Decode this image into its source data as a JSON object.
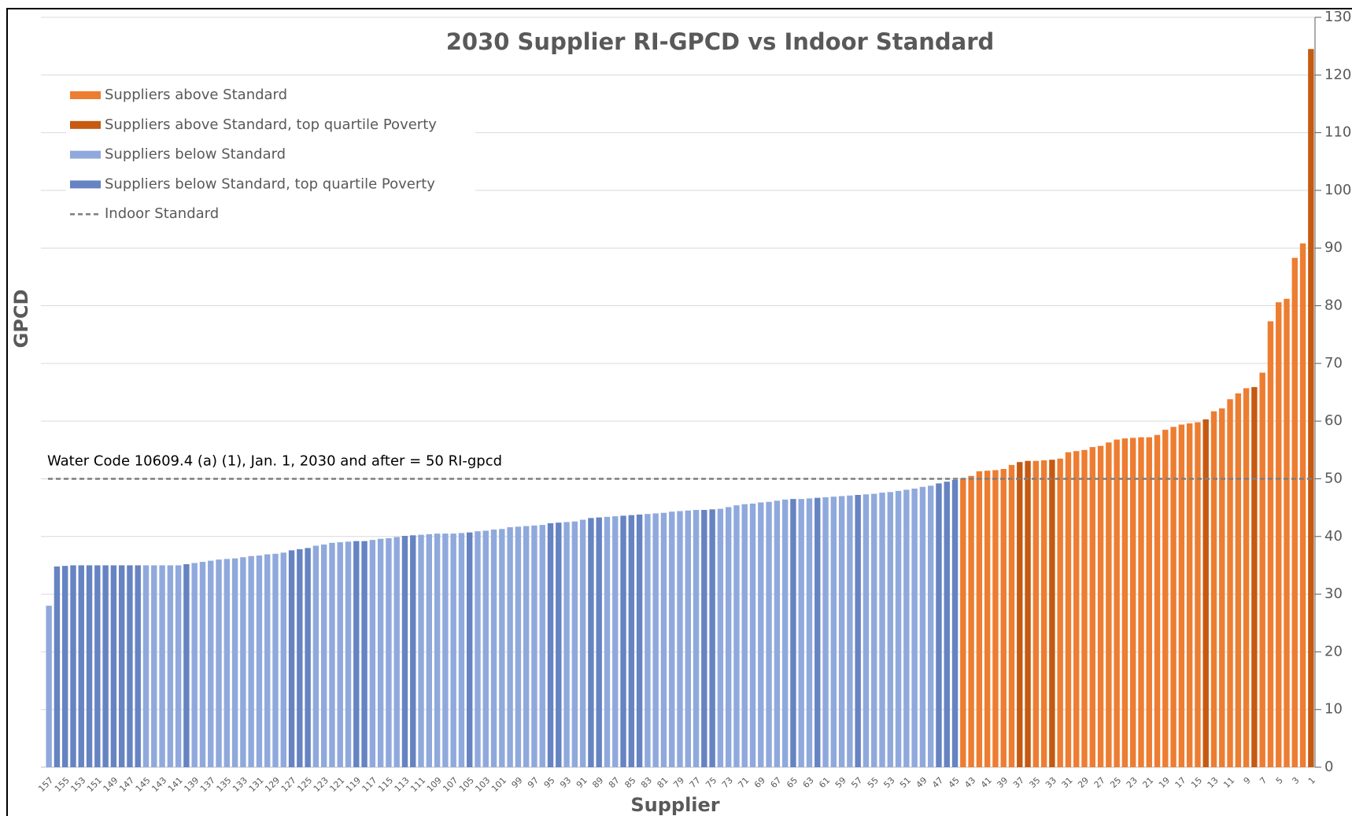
{
  "chart_data": {
    "type": "bar",
    "title": "2030 Supplier RI-GPCD vs Indoor Standard",
    "x_label": "Supplier",
    "y_label": "GPCD",
    "ylim": [
      0,
      130
    ],
    "yticks": [
      0,
      10,
      20,
      30,
      40,
      50,
      60,
      70,
      80,
      90,
      100,
      110,
      120,
      130
    ],
    "grid": true,
    "legend": "upper left",
    "categories": [
      "157",
      null,
      "155",
      null,
      "153",
      null,
      "151",
      null,
      "149",
      null,
      "147",
      null,
      "145",
      null,
      "143",
      null,
      "141",
      null,
      "139",
      null,
      "137",
      null,
      "135",
      null,
      "133",
      null,
      "131",
      null,
      "129",
      null,
      "127",
      null,
      "125",
      null,
      "123",
      null,
      "121",
      null,
      "119",
      null,
      "117",
      null,
      "115",
      null,
      "113",
      null,
      "111",
      null,
      "109",
      null,
      "107",
      null,
      "105",
      null,
      "103",
      null,
      "101",
      null,
      "99",
      null,
      "97",
      null,
      "95",
      null,
      "93",
      null,
      "91",
      null,
      "89",
      null,
      "87",
      null,
      "85",
      null,
      "83",
      null,
      "81",
      null,
      "79",
      null,
      "77",
      null,
      "75",
      null,
      "73",
      null,
      "71",
      null,
      "69",
      null,
      "67",
      null,
      "65",
      null,
      "63",
      null,
      "61",
      null,
      "59",
      null,
      "57",
      null,
      "55",
      null,
      "53",
      null,
      "51",
      null,
      "49",
      null,
      "47",
      null,
      "45",
      null,
      "43",
      null,
      "41",
      null,
      "39",
      null,
      "37",
      null,
      "35",
      null,
      "33",
      null,
      "31",
      null,
      "29",
      null,
      "27",
      null,
      "25",
      null,
      "23",
      null,
      "21",
      null,
      "19",
      null,
      "17",
      null,
      "15",
      null,
      "13",
      null,
      "11",
      null,
      "9",
      null,
      "7",
      null,
      "5",
      null,
      "3",
      null,
      "1"
    ],
    "series": [
      {
        "name": "Suppliers above Standard",
        "color": "#ed7d31",
        "values": [
          null,
          null,
          null,
          null,
          null,
          null,
          null,
          null,
          null,
          null,
          null,
          null,
          null,
          null,
          null,
          null,
          null,
          null,
          null,
          null,
          null,
          null,
          null,
          null,
          null,
          null,
          null,
          null,
          null,
          null,
          null,
          null,
          null,
          null,
          null,
          null,
          null,
          null,
          null,
          null,
          null,
          null,
          null,
          null,
          null,
          null,
          null,
          null,
          null,
          null,
          null,
          null,
          null,
          null,
          null,
          null,
          null,
          null,
          null,
          null,
          null,
          null,
          null,
          null,
          null,
          null,
          null,
          null,
          null,
          null,
          null,
          null,
          null,
          null,
          null,
          null,
          null,
          null,
          null,
          null,
          null,
          null,
          null,
          null,
          null,
          null,
          null,
          null,
          null,
          null,
          null,
          null,
          null,
          null,
          null,
          null,
          null,
          null,
          null,
          null,
          null,
          null,
          null,
          null,
          null,
          null,
          null,
          null,
          null,
          null,
          null,
          null,
          null,
          50.1,
          50.5,
          51.3,
          51.4,
          51.5,
          51.7,
          52.4,
          null,
          null,
          53.1,
          53.2,
          null,
          53.5,
          54.6,
          54.8,
          55,
          55.5,
          55.7,
          56.3,
          56.8,
          57,
          57.1,
          57.2,
          57.2,
          57.6,
          58.5,
          59,
          59.4,
          59.6,
          59.8,
          null,
          61.7,
          62.2,
          63.8,
          64.8,
          65.7,
          null,
          68.4,
          77.3,
          80.6,
          81.2,
          88.3,
          90.8,
          null
        ]
      },
      {
        "name": "Suppliers above Standard, top quartile Poverty",
        "color": "#c55a11",
        "values": [
          null,
          null,
          null,
          null,
          null,
          null,
          null,
          null,
          null,
          null,
          null,
          null,
          null,
          null,
          null,
          null,
          null,
          null,
          null,
          null,
          null,
          null,
          null,
          null,
          null,
          null,
          null,
          null,
          null,
          null,
          null,
          null,
          null,
          null,
          null,
          null,
          null,
          null,
          null,
          null,
          null,
          null,
          null,
          null,
          null,
          null,
          null,
          null,
          null,
          null,
          null,
          null,
          null,
          null,
          null,
          null,
          null,
          null,
          null,
          null,
          null,
          null,
          null,
          null,
          null,
          null,
          null,
          null,
          null,
          null,
          null,
          null,
          null,
          null,
          null,
          null,
          null,
          null,
          null,
          null,
          null,
          null,
          null,
          null,
          null,
          null,
          null,
          null,
          null,
          null,
          null,
          null,
          null,
          null,
          null,
          null,
          null,
          null,
          null,
          null,
          null,
          null,
          null,
          null,
          null,
          null,
          null,
          null,
          null,
          null,
          null,
          null,
          null,
          null,
          null,
          null,
          null,
          null,
          null,
          null,
          52.9,
          53.1,
          null,
          null,
          53.3,
          null,
          null,
          null,
          null,
          null,
          null,
          null,
          null,
          null,
          null,
          null,
          null,
          null,
          null,
          null,
          null,
          null,
          null,
          60.3,
          null,
          null,
          null,
          null,
          null,
          65.9,
          null,
          null,
          null,
          null,
          null,
          null,
          124.5
        ]
      },
      {
        "name": "Suppliers below Standard",
        "color": "#90a9dc",
        "values": [
          28,
          null,
          null,
          null,
          null,
          null,
          null,
          null,
          null,
          null,
          null,
          null,
          35,
          35,
          35,
          35,
          35,
          null,
          35.4,
          35.6,
          35.8,
          36,
          36.1,
          36.2,
          36.4,
          36.6,
          36.7,
          36.9,
          37,
          37.2,
          null,
          null,
          null,
          38.4,
          38.6,
          38.9,
          39,
          39.1,
          null,
          null,
          39.4,
          39.6,
          39.7,
          39.9,
          null,
          null,
          40.3,
          40.4,
          40.5,
          40.5,
          40.5,
          40.6,
          null,
          40.9,
          41,
          41.2,
          41.3,
          41.6,
          41.7,
          41.8,
          41.9,
          42,
          null,
          null,
          42.5,
          42.6,
          42.9,
          null,
          null,
          43.4,
          43.5,
          null,
          null,
          null,
          43.9,
          44,
          44.1,
          44.3,
          44.4,
          44.5,
          44.6,
          null,
          null,
          44.8,
          45.1,
          45.4,
          45.6,
          45.7,
          45.9,
          46,
          46.2,
          46.4,
          null,
          46.5,
          46.6,
          null,
          46.8,
          46.9,
          47,
          47.1,
          null,
          47.3,
          47.4,
          47.6,
          47.7,
          47.9,
          48.1,
          48.3,
          48.6,
          48.8,
          null,
          null,
          null,
          null,
          null,
          null,
          null,
          null,
          null,
          null,
          null,
          null,
          null,
          null,
          null,
          null,
          null,
          null,
          null,
          null,
          null,
          null,
          null,
          null,
          null,
          null,
          null,
          null,
          null,
          null,
          null,
          null,
          null,
          null,
          null,
          null,
          null,
          null,
          null,
          null,
          null,
          null,
          null,
          null,
          null,
          null,
          null
        ]
      },
      {
        "name": "Suppliers below Standard, top quartile Poverty",
        "color": "#6683c2",
        "values": [
          null,
          34.8,
          34.9,
          35,
          35,
          35,
          35,
          35,
          35,
          35,
          35,
          35,
          null,
          null,
          null,
          null,
          null,
          35.2,
          null,
          null,
          null,
          null,
          null,
          null,
          null,
          null,
          null,
          null,
          null,
          null,
          37.6,
          37.8,
          38,
          null,
          null,
          null,
          null,
          null,
          39.2,
          39.2,
          null,
          null,
          null,
          null,
          40.1,
          40.2,
          null,
          null,
          null,
          null,
          null,
          null,
          40.7,
          null,
          null,
          null,
          null,
          null,
          null,
          null,
          null,
          null,
          42.3,
          42.4,
          null,
          null,
          null,
          43.2,
          43.3,
          null,
          null,
          43.6,
          43.7,
          43.8,
          null,
          null,
          null,
          null,
          null,
          null,
          null,
          44.6,
          44.7,
          null,
          null,
          null,
          null,
          null,
          null,
          null,
          null,
          null,
          46.5,
          null,
          null,
          46.7,
          null,
          null,
          null,
          null,
          47.2,
          null,
          null,
          null,
          null,
          null,
          null,
          null,
          null,
          null,
          49.2,
          49.5,
          49.8,
          null,
          null,
          null,
          null,
          null,
          null,
          null,
          null,
          null,
          null,
          null,
          null,
          null,
          null,
          null,
          null,
          null,
          null,
          null,
          null,
          null,
          null,
          null,
          null,
          null,
          null,
          null,
          null,
          null,
          null,
          null,
          null,
          null,
          null,
          null,
          null,
          null,
          null,
          null,
          null,
          null,
          null,
          null,
          null
        ]
      }
    ],
    "reference_line": {
      "name": "Indoor Standard",
      "value": 50,
      "color": "#7f7f7f",
      "annotation": "Water Code 10609.4 (a) (1), Jan. 1, 2030 and after = 50 RI-gpcd"
    }
  }
}
